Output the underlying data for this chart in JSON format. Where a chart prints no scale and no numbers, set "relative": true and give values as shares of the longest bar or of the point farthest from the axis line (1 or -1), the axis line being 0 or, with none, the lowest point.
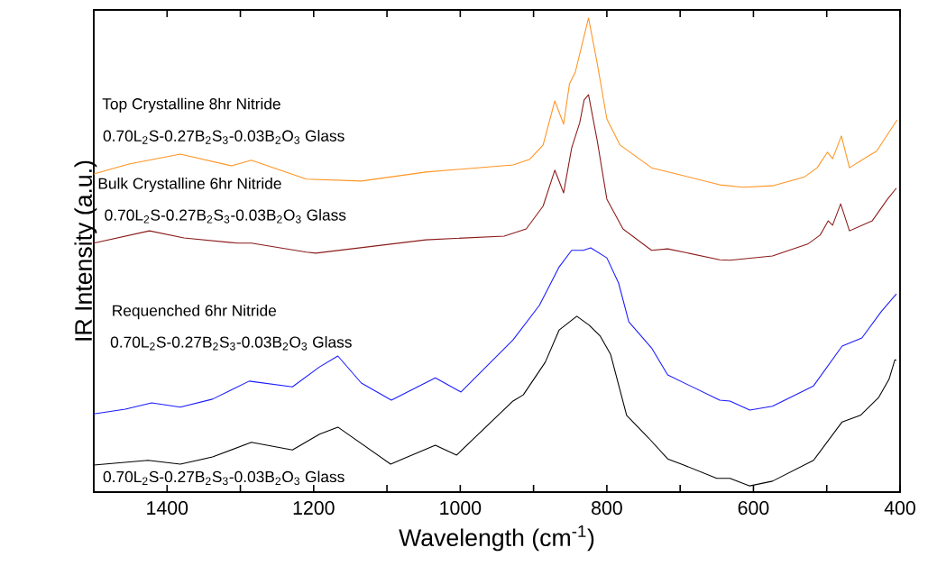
{
  "chart_data": {
    "type": "line",
    "relative": true,
    "xlabel": "Wavelength (cm$^{-1}$)",
    "ylabel": "IR Intensity (a.u.)",
    "xlim": [
      1500,
      400
    ],
    "xticks": [
      1400,
      1200,
      1000,
      800,
      600,
      400,
      {
        "value": 1300,
        "label": null
      },
      {
        "value": 1100,
        "label": null
      },
      {
        "value": 900,
        "label": null
      },
      {
        "value": 700,
        "label": null
      },
      {
        "value": 500,
        "label": null
      }
    ],
    "annotations": [
      "Top Crystalline 8hr Nitride",
      "0.70L$_{2}$S-0.27B$_{2}$S$_{3}$-0.03B$_{2}$O$_{3}$ Glass",
      "Bulk Crystalline 6hr Nitride",
      "0.70L$_{2}$S-0.27B$_{2}$S$_{3}$-0.03B$_{2}$O$_{3}$ Glass",
      "Requenched 6hr Nitride",
      "0.70L$_{2}$S-0.27B$_{2}$S$_{3}$-0.03B$_{2}$O$_{3}$ Glass",
      "0.70L$_{2}$S-0.27B$_{2}$S$_{3}$-0.03B$_{2}$O$_{3}$ Glass"
    ],
    "series": [
      {
        "color": "#ff9422",
        "x": [
          1500,
          1452,
          1382,
          1312,
          1285,
          1210,
          1135,
          1047,
          928,
          905,
          887,
          871,
          859,
          851,
          843,
          825,
          813,
          800,
          782,
          739,
          700,
          646,
          614,
          574,
          530,
          513,
          499,
          492,
          480,
          469,
          441,
          432,
          404
        ],
        "values": [
          0.671,
          0.692,
          0.713,
          0.688,
          0.7,
          0.66,
          0.656,
          0.675,
          0.69,
          0.702,
          0.732,
          0.825,
          0.776,
          0.861,
          0.886,
          1.0,
          0.903,
          0.787,
          0.732,
          0.684,
          0.669,
          0.648,
          0.643,
          0.646,
          0.665,
          0.684,
          0.717,
          0.703,
          0.751,
          0.684,
          0.711,
          0.719,
          0.785
        ]
      },
      {
        "color": "#8b1a1a",
        "x": [
          1500,
          1424,
          1377,
          1304,
          1285,
          1210,
          1197,
          1047,
          940,
          910,
          887,
          871,
          859,
          848,
          837,
          831,
          825,
          813,
          800,
          778,
          739,
          717,
          646,
          632,
          574,
          526,
          509,
          498,
          492,
          481,
          469,
          438,
          417,
          405
        ],
        "values": [
          0.525,
          0.551,
          0.536,
          0.525,
          0.525,
          0.506,
          0.504,
          0.532,
          0.54,
          0.555,
          0.603,
          0.679,
          0.631,
          0.726,
          0.779,
          0.827,
          0.838,
          0.74,
          0.618,
          0.555,
          0.51,
          0.513,
          0.49,
          0.489,
          0.498,
          0.523,
          0.542,
          0.572,
          0.563,
          0.608,
          0.551,
          0.572,
          0.618,
          0.641
        ]
      },
      {
        "color": "#1a1aff",
        "x": [
          1500,
          1457,
          1421,
          1382,
          1338,
          1288,
          1229,
          1192,
          1167,
          1135,
          1094,
          1034,
          999,
          928,
          892,
          865,
          848,
          832,
          822,
          800,
          784,
          770,
          739,
          717,
          646,
          632,
          605,
          574,
          518,
          479,
          452,
          426,
          405
        ],
        "values": [
          0.165,
          0.175,
          0.188,
          0.179,
          0.196,
          0.234,
          0.222,
          0.264,
          0.287,
          0.23,
          0.194,
          0.241,
          0.211,
          0.321,
          0.394,
          0.475,
          0.51,
          0.51,
          0.515,
          0.494,
          0.441,
          0.359,
          0.304,
          0.247,
          0.194,
          0.192,
          0.173,
          0.181,
          0.224,
          0.308,
          0.325,
          0.38,
          0.418
        ]
      },
      {
        "color": "#000000",
        "x": [
          1500,
          1426,
          1382,
          1338,
          1285,
          1229,
          1192,
          1167,
          1095,
          1034,
          1005,
          928,
          914,
          884,
          865,
          841,
          824,
          809,
          795,
          773,
          743,
          717,
          695,
          650,
          632,
          605,
          574,
          518,
          479,
          454,
          429,
          415,
          407,
          405
        ],
        "values": [
          0.057,
          0.067,
          0.059,
          0.074,
          0.105,
          0.089,
          0.122,
          0.137,
          0.059,
          0.099,
          0.078,
          0.192,
          0.205,
          0.274,
          0.342,
          0.371,
          0.352,
          0.329,
          0.291,
          0.162,
          0.114,
          0.07,
          0.057,
          0.029,
          0.029,
          0.013,
          0.023,
          0.067,
          0.148,
          0.162,
          0.2,
          0.238,
          0.279,
          0.278
        ]
      }
    ]
  }
}
